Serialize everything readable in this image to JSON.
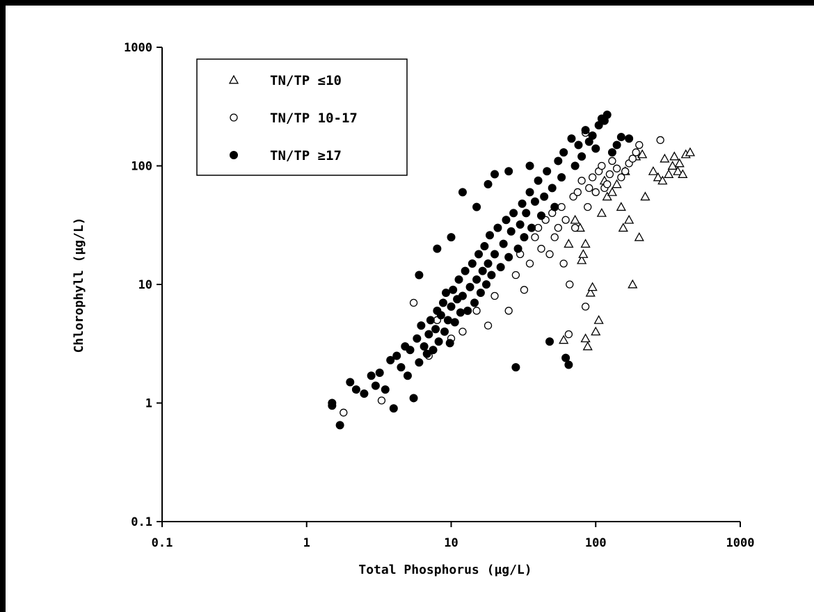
{
  "chart_data": {
    "type": "scatter",
    "title": "",
    "xlabel": "Total Phosphorus (µg/L)",
    "ylabel": "Chlorophyll (µg/L)",
    "x_scale": "log",
    "y_scale": "log",
    "xlim": [
      0.1,
      1000
    ],
    "ylim": [
      0.1,
      1000
    ],
    "x_ticks": [
      "0.1",
      "1",
      "10",
      "100",
      "1000"
    ],
    "y_ticks": [
      "1000",
      "100",
      "10",
      "1",
      "0.1"
    ],
    "grid": false,
    "legend_position": "top-left",
    "series": [
      {
        "name": "TN/TP ≤10",
        "marker": "open-triangle",
        "points": [
          [
            60,
            3.4
          ],
          [
            65,
            22
          ],
          [
            72,
            35
          ],
          [
            78,
            30
          ],
          [
            80,
            16
          ],
          [
            82,
            18
          ],
          [
            85,
            22
          ],
          [
            85,
            3.5
          ],
          [
            88,
            3
          ],
          [
            92,
            8.5
          ],
          [
            95,
            9.5
          ],
          [
            100,
            4
          ],
          [
            105,
            5
          ],
          [
            110,
            40
          ],
          [
            115,
            75
          ],
          [
            120,
            55
          ],
          [
            130,
            60
          ],
          [
            140,
            70
          ],
          [
            150,
            45
          ],
          [
            155,
            30
          ],
          [
            160,
            90
          ],
          [
            170,
            35
          ],
          [
            180,
            10
          ],
          [
            190,
            120
          ],
          [
            200,
            25
          ],
          [
            210,
            125
          ],
          [
            220,
            55
          ],
          [
            250,
            90
          ],
          [
            270,
            80
          ],
          [
            290,
            75
          ],
          [
            300,
            115
          ],
          [
            320,
            85
          ],
          [
            340,
            100
          ],
          [
            350,
            120
          ],
          [
            370,
            90
          ],
          [
            380,
            105
          ],
          [
            400,
            85
          ],
          [
            420,
            125
          ],
          [
            450,
            130
          ]
        ]
      },
      {
        "name": "TN/TP 10-17",
        "marker": "open-circle",
        "points": [
          [
            1.8,
            0.83
          ],
          [
            3.3,
            1.05
          ],
          [
            5.5,
            7
          ],
          [
            7,
            2.5
          ],
          [
            8,
            5
          ],
          [
            10,
            3.5
          ],
          [
            12,
            4
          ],
          [
            15,
            6
          ],
          [
            18,
            4.5
          ],
          [
            20,
            8
          ],
          [
            25,
            6
          ],
          [
            28,
            12
          ],
          [
            30,
            18
          ],
          [
            32,
            9
          ],
          [
            35,
            15
          ],
          [
            38,
            25
          ],
          [
            40,
            30
          ],
          [
            42,
            20
          ],
          [
            45,
            35
          ],
          [
            48,
            18
          ],
          [
            50,
            40
          ],
          [
            52,
            25
          ],
          [
            55,
            30
          ],
          [
            58,
            45
          ],
          [
            60,
            15
          ],
          [
            62,
            35
          ],
          [
            65,
            3.8
          ],
          [
            66,
            10
          ],
          [
            70,
            55
          ],
          [
            72,
            30
          ],
          [
            75,
            60
          ],
          [
            80,
            75
          ],
          [
            85,
            6.5
          ],
          [
            85,
            190
          ],
          [
            88,
            45
          ],
          [
            90,
            65
          ],
          [
            95,
            80
          ],
          [
            100,
            60
          ],
          [
            105,
            90
          ],
          [
            110,
            100
          ],
          [
            115,
            65
          ],
          [
            120,
            70
          ],
          [
            125,
            85
          ],
          [
            130,
            110
          ],
          [
            140,
            95
          ],
          [
            150,
            80
          ],
          [
            160,
            90
          ],
          [
            170,
            105
          ],
          [
            180,
            115
          ],
          [
            190,
            130
          ],
          [
            200,
            150
          ],
          [
            280,
            165
          ]
        ]
      },
      {
        "name": "TN/TP ≥17",
        "marker": "filled-circle",
        "points": [
          [
            1.5,
            1.0
          ],
          [
            1.5,
            0.95
          ],
          [
            1.7,
            0.65
          ],
          [
            2,
            1.5
          ],
          [
            2.2,
            1.3
          ],
          [
            2.5,
            1.2
          ],
          [
            2.8,
            1.7
          ],
          [
            3,
            1.4
          ],
          [
            3.2,
            1.8
          ],
          [
            3.5,
            1.3
          ],
          [
            3.8,
            2.3
          ],
          [
            4,
            0.9
          ],
          [
            4.2,
            2.5
          ],
          [
            4.5,
            2
          ],
          [
            4.8,
            3
          ],
          [
            5,
            1.7
          ],
          [
            5.2,
            2.8
          ],
          [
            5.5,
            1.1
          ],
          [
            5.8,
            3.5
          ],
          [
            6,
            2.2
          ],
          [
            6.2,
            4.5
          ],
          [
            6.5,
            3
          ],
          [
            6.8,
            2.6
          ],
          [
            7,
            3.8
          ],
          [
            7.2,
            5
          ],
          [
            7.5,
            2.8
          ],
          [
            7.8,
            4.2
          ],
          [
            8,
            6
          ],
          [
            8.2,
            3.3
          ],
          [
            8.5,
            5.5
          ],
          [
            8.8,
            7
          ],
          [
            9,
            4
          ],
          [
            9.2,
            8.5
          ],
          [
            9.5,
            5
          ],
          [
            9.8,
            3.2
          ],
          [
            10,
            6.5
          ],
          [
            10.3,
            9
          ],
          [
            10.6,
            4.8
          ],
          [
            11,
            7.5
          ],
          [
            11.3,
            11
          ],
          [
            11.6,
            5.8
          ],
          [
            12,
            8
          ],
          [
            12.5,
            13
          ],
          [
            13,
            6
          ],
          [
            13.5,
            9.5
          ],
          [
            14,
            15
          ],
          [
            14.5,
            7
          ],
          [
            15,
            11
          ],
          [
            15.5,
            18
          ],
          [
            16,
            8.5
          ],
          [
            16.5,
            13
          ],
          [
            17,
            21
          ],
          [
            17.5,
            10
          ],
          [
            18,
            15
          ],
          [
            18.5,
            26
          ],
          [
            19,
            12
          ],
          [
            20,
            18
          ],
          [
            21,
            30
          ],
          [
            22,
            14
          ],
          [
            23,
            22
          ],
          [
            24,
            35
          ],
          [
            25,
            17
          ],
          [
            26,
            28
          ],
          [
            27,
            40
          ],
          [
            28,
            2
          ],
          [
            29,
            20
          ],
          [
            30,
            32
          ],
          [
            31,
            48
          ],
          [
            32,
            25
          ],
          [
            33,
            40
          ],
          [
            35,
            60
          ],
          [
            36,
            30
          ],
          [
            38,
            50
          ],
          [
            40,
            75
          ],
          [
            42,
            38
          ],
          [
            44,
            55
          ],
          [
            46,
            90
          ],
          [
            48,
            3.3
          ],
          [
            50,
            65
          ],
          [
            52,
            45
          ],
          [
            55,
            110
          ],
          [
            58,
            80
          ],
          [
            60,
            130
          ],
          [
            62,
            2.4
          ],
          [
            65,
            2.1
          ],
          [
            68,
            170
          ],
          [
            72,
            100
          ],
          [
            76,
            150
          ],
          [
            80,
            120
          ],
          [
            85,
            200
          ],
          [
            90,
            160
          ],
          [
            95,
            180
          ],
          [
            100,
            140
          ],
          [
            105,
            220
          ],
          [
            110,
            250
          ],
          [
            115,
            240
          ],
          [
            120,
            270
          ],
          [
            130,
            130
          ],
          [
            140,
            150
          ],
          [
            150,
            175
          ],
          [
            170,
            170
          ],
          [
            12,
            60
          ],
          [
            15,
            45
          ],
          [
            18,
            70
          ],
          [
            20,
            85
          ],
          [
            25,
            90
          ],
          [
            35,
            100
          ],
          [
            8,
            20
          ],
          [
            10,
            25
          ],
          [
            6,
            12
          ]
        ]
      }
    ]
  }
}
